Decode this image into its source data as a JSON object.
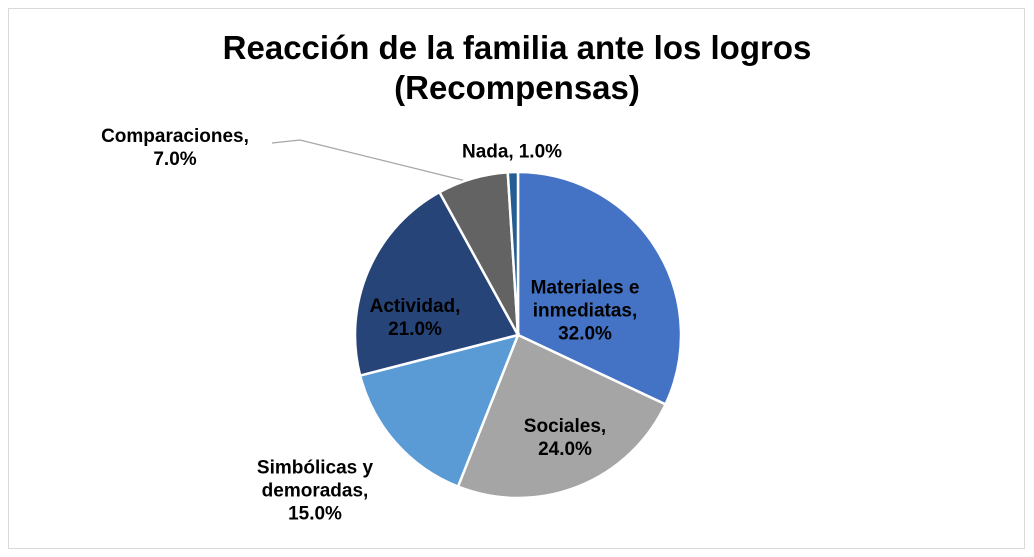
{
  "chart_data": {
    "type": "pie",
    "title": "Reacción de la familia ante los logros (Recompensas)",
    "categories": [
      "Materiales e inmediatas,",
      "Sociales,",
      "Simbólicas y demoradas,",
      "Actividad,",
      "Comparaciones,",
      "Nada,"
    ],
    "values": [
      32,
      24,
      15,
      21,
      7,
      1
    ],
    "value_labels": [
      "32.0%",
      "24.0%",
      "15.0%",
      "21.0%",
      "7.0%",
      "1.0%"
    ],
    "colors": [
      "#4472c4",
      "#a5a5a5",
      "#5b9bd5",
      "#264478",
      "#636363",
      "#255e91"
    ]
  }
}
